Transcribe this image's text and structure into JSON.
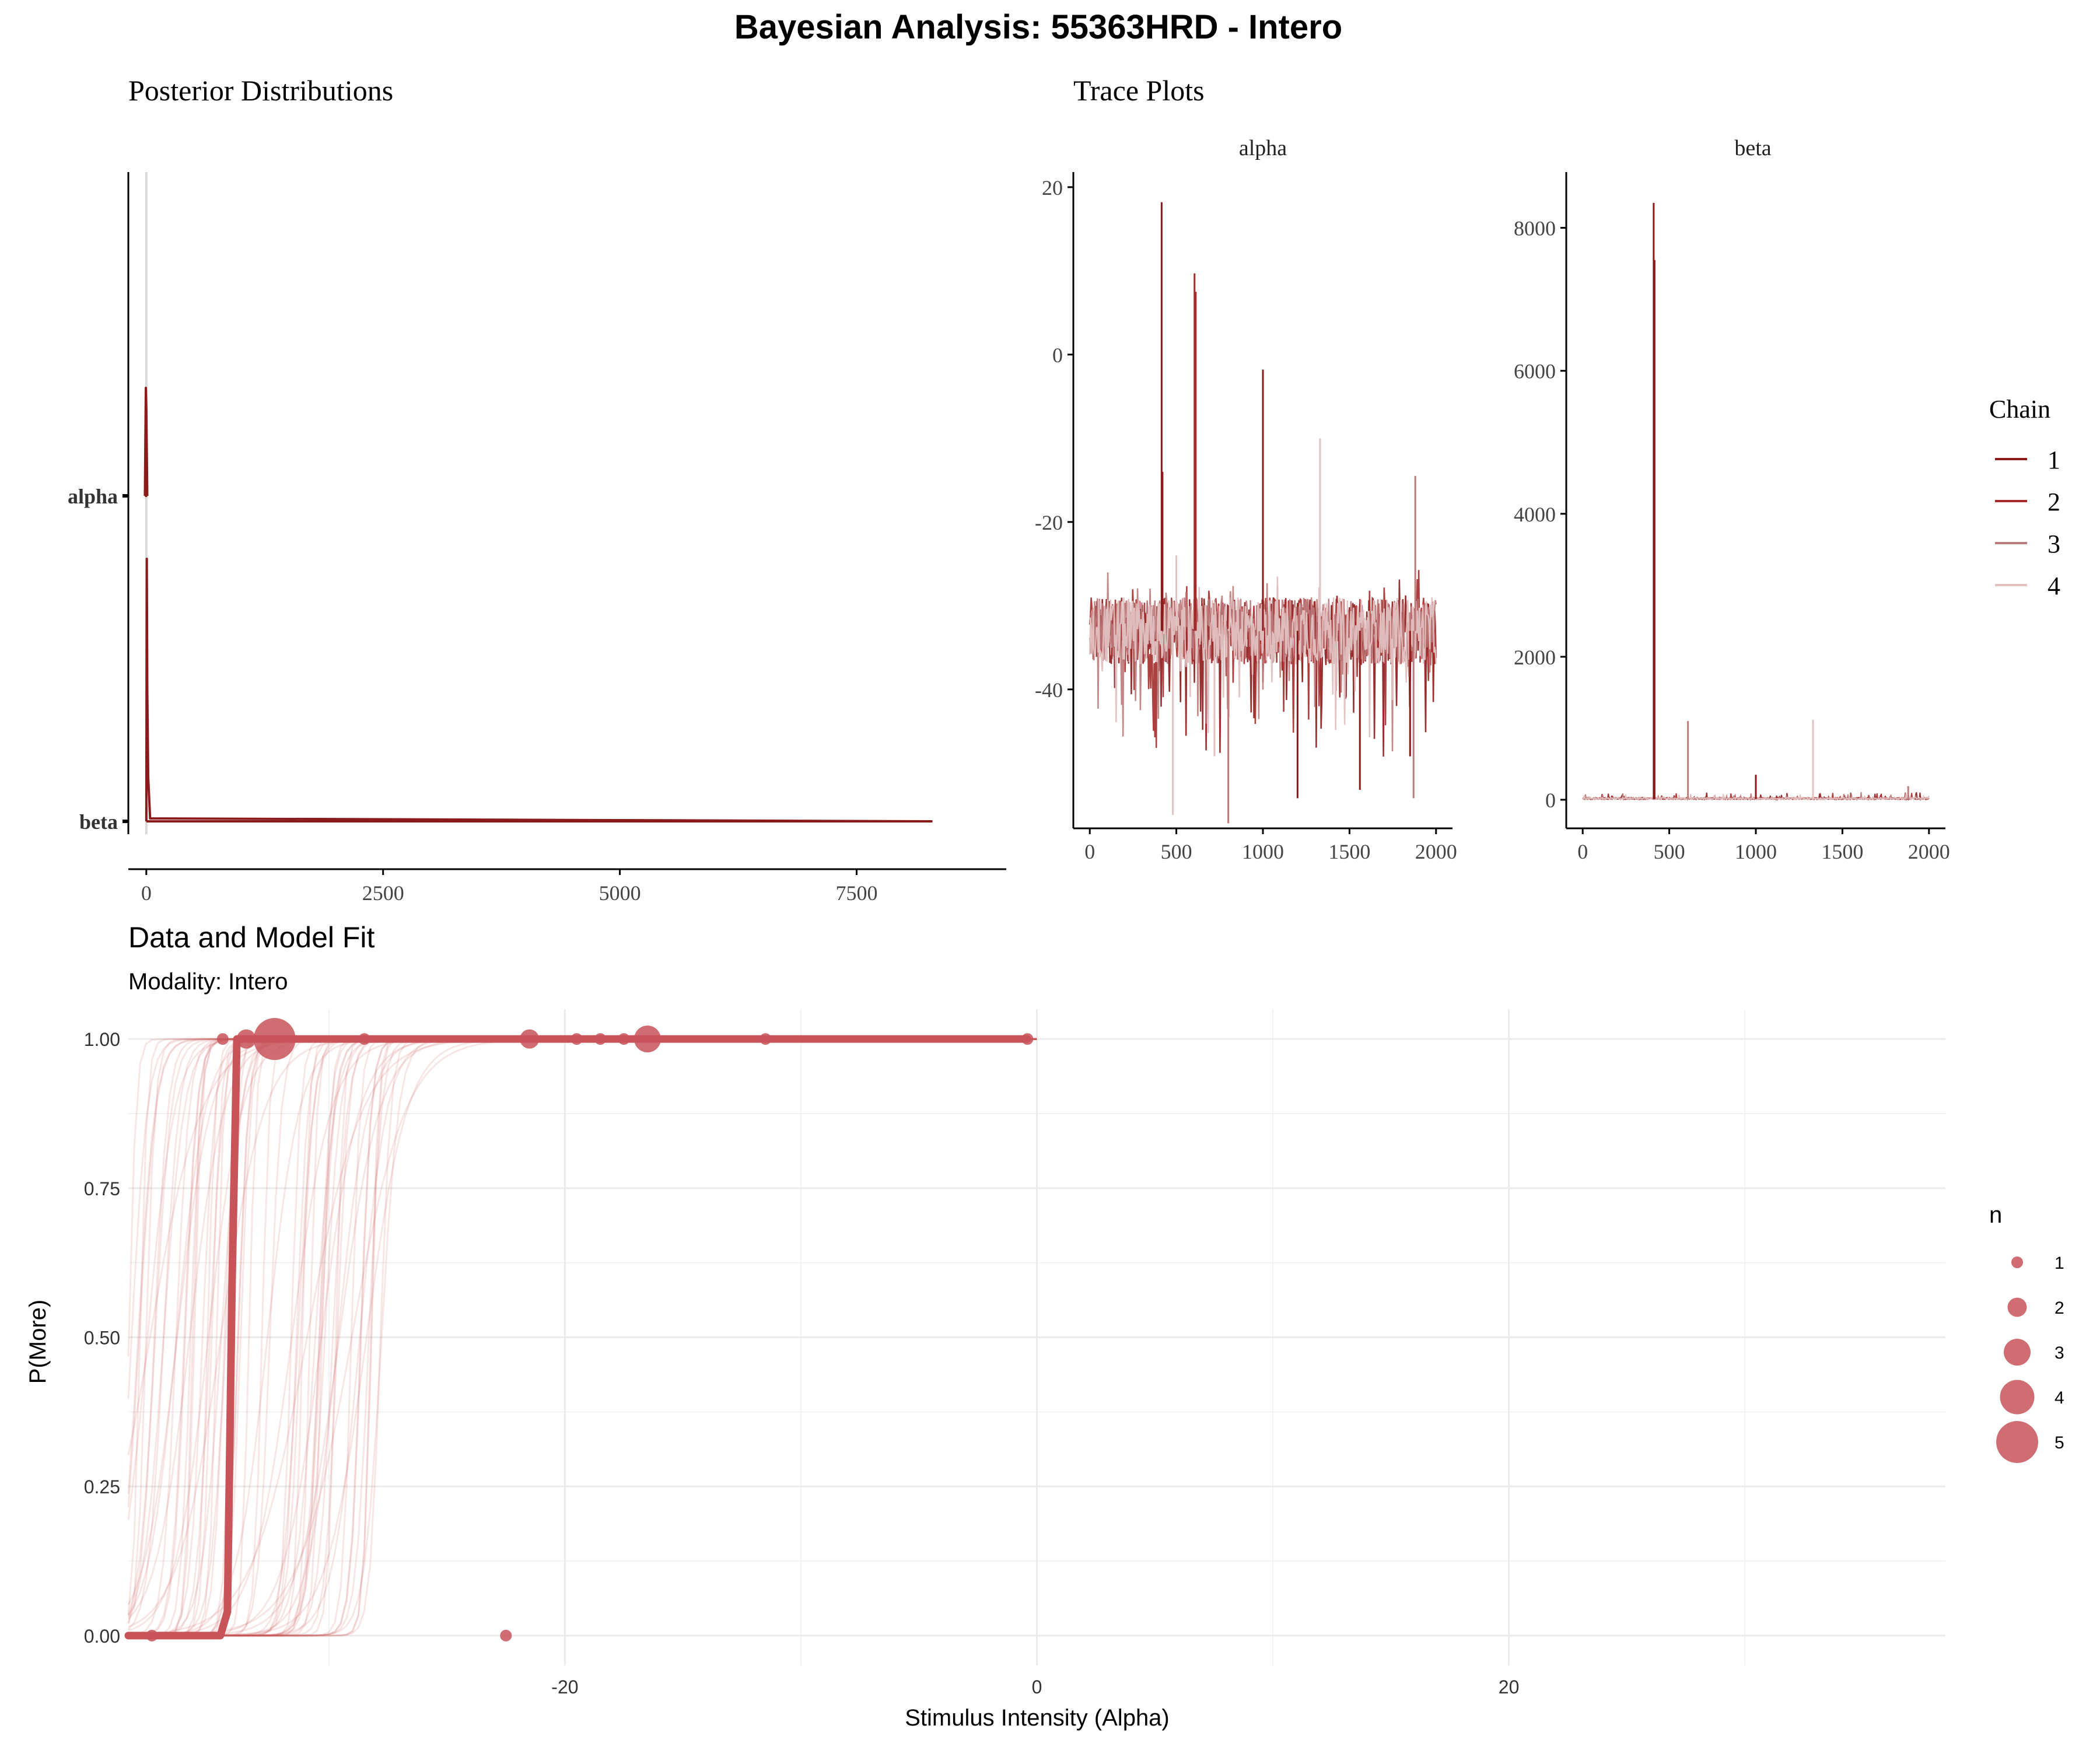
{
  "title": "Bayesian Analysis: 55363HRD - Intero",
  "colors": {
    "chain1": "#8b1a1a",
    "chain2": "#a52a2a",
    "chain3": "#bc7a7a",
    "chain4": "#e2c1c1",
    "fit": "#c8545a",
    "grid": "#ebebeb"
  },
  "chart_data": [
    {
      "type": "line",
      "panel": "posterior",
      "title": "Posterior Distributions",
      "categories": [
        "alpha",
        "beta"
      ],
      "xlim": [
        -190,
        9080
      ],
      "xticks": [
        0,
        2500,
        5000,
        7500
      ],
      "series": [
        {
          "name": "alpha",
          "x": [
            -15,
            -5,
            0,
            10
          ],
          "density": [
            0.0,
            1.0,
            0.8,
            0.0
          ]
        },
        {
          "name": "beta",
          "x": [
            0,
            5,
            10,
            20,
            40,
            8300
          ],
          "density": [
            0.0,
            0.9,
            0.45,
            0.15,
            0.01,
            0.0
          ]
        }
      ]
    },
    {
      "type": "line",
      "panel": "trace-alpha",
      "title": "alpha",
      "xlim": [
        -95,
        2095
      ],
      "ylim": [
        -56.6,
        21.8
      ],
      "xticks": [
        0,
        500,
        1000,
        1500,
        2000
      ],
      "yticks": [
        20,
        0,
        -20,
        -40
      ],
      "band": {
        "low": -37,
        "high": -29
      },
      "spikes": [
        {
          "chain": "1",
          "x": [
            415,
            420
          ],
          "y": [
            18.2,
            -14
          ]
        },
        {
          "chain": "2",
          "x": [
            605,
            612
          ],
          "y": [
            9.7,
            7.5
          ]
        },
        {
          "chain": "1",
          "x": [
            1000
          ],
          "y": [
            -1.8
          ]
        },
        {
          "chain": "4",
          "x": [
            1330
          ],
          "y": [
            -10
          ]
        },
        {
          "chain": "3",
          "x": [
            1880
          ],
          "y": [
            -14.5
          ]
        },
        {
          "chain": "4",
          "x": [
            500
          ],
          "y": [
            -24
          ]
        },
        {
          "chain": "1",
          "x": [
            1200,
            1560,
            1850
          ],
          "y": [
            -53,
            -52,
            -48
          ]
        },
        {
          "chain": "3",
          "x": [
            800,
            1870
          ],
          "y": [
            -56,
            -53
          ]
        },
        {
          "chain": "4",
          "x": [
            480,
            720
          ],
          "y": [
            -55,
            -48
          ]
        }
      ]
    },
    {
      "type": "line",
      "panel": "trace-beta",
      "title": "beta",
      "xlim": [
        -95,
        2095
      ],
      "ylim": [
        -400,
        8780
      ],
      "xticks": [
        0,
        500,
        1000,
        1500,
        2000
      ],
      "yticks": [
        8000,
        6000,
        4000,
        2000,
        0
      ],
      "spikes": [
        {
          "chain": "1",
          "x": [
            410,
            415
          ],
          "y": [
            8350,
            7550
          ]
        },
        {
          "chain": "3",
          "x": [
            608
          ],
          "y": [
            1100
          ]
        },
        {
          "chain": "1",
          "x": [
            1000
          ],
          "y": [
            350
          ]
        },
        {
          "chain": "4",
          "x": [
            1330
          ],
          "y": [
            1120
          ]
        },
        {
          "chain": "3",
          "x": [
            1880
          ],
          "y": [
            190
          ]
        }
      ]
    },
    {
      "type": "scatter",
      "panel": "model-fit",
      "title": "Data and Model Fit",
      "subtitle": "Modality: Intero",
      "xlabel": "Stimulus Intensity (Alpha)",
      "ylabel": "P(More)",
      "xlim": [
        -38.5,
        38.5
      ],
      "ylim": [
        -0.05,
        1.05
      ],
      "xticks": [
        -20,
        0,
        20
      ],
      "xgrid_minor": [
        -30,
        -10,
        10,
        30
      ],
      "yticks": [
        0.0,
        0.25,
        0.5,
        0.75,
        1.0
      ],
      "ytick_labels": [
        "0.00",
        "0.25",
        "0.50",
        "0.75",
        "1.00"
      ],
      "points": [
        {
          "x": -37.5,
          "y": 0.0,
          "n": 1
        },
        {
          "x": -22.5,
          "y": 0.0,
          "n": 1
        },
        {
          "x": -34.5,
          "y": 1.0,
          "n": 1
        },
        {
          "x": -33.5,
          "y": 1.0,
          "n": 2
        },
        {
          "x": -32.3,
          "y": 1.0,
          "n": 5
        },
        {
          "x": -28.5,
          "y": 1.0,
          "n": 1
        },
        {
          "x": -21.5,
          "y": 1.0,
          "n": 2
        },
        {
          "x": -19.5,
          "y": 1.0,
          "n": 1
        },
        {
          "x": -18.5,
          "y": 1.0,
          "n": 1
        },
        {
          "x": -17.5,
          "y": 1.0,
          "n": 1
        },
        {
          "x": -16.5,
          "y": 1.0,
          "n": 3
        },
        {
          "x": -11.5,
          "y": 1.0,
          "n": 1
        },
        {
          "x": -0.4,
          "y": 1.0,
          "n": 1
        }
      ],
      "fit_curve": {
        "x": [
          -38.5,
          -34.6,
          -34.3,
          -34.1,
          -33.9,
          -0.4
        ],
        "y": [
          0.0,
          0.0,
          0.04,
          0.6,
          1.0,
          1.0
        ]
      },
      "posterior_alpha_range": [
        -38.5,
        -27.5
      ],
      "legend": {
        "title": "n",
        "labels": [
          "1",
          "2",
          "3",
          "4",
          "5"
        ]
      }
    }
  ],
  "legend_chain": {
    "title": "Chain",
    "items": [
      "1",
      "2",
      "3",
      "4"
    ]
  }
}
